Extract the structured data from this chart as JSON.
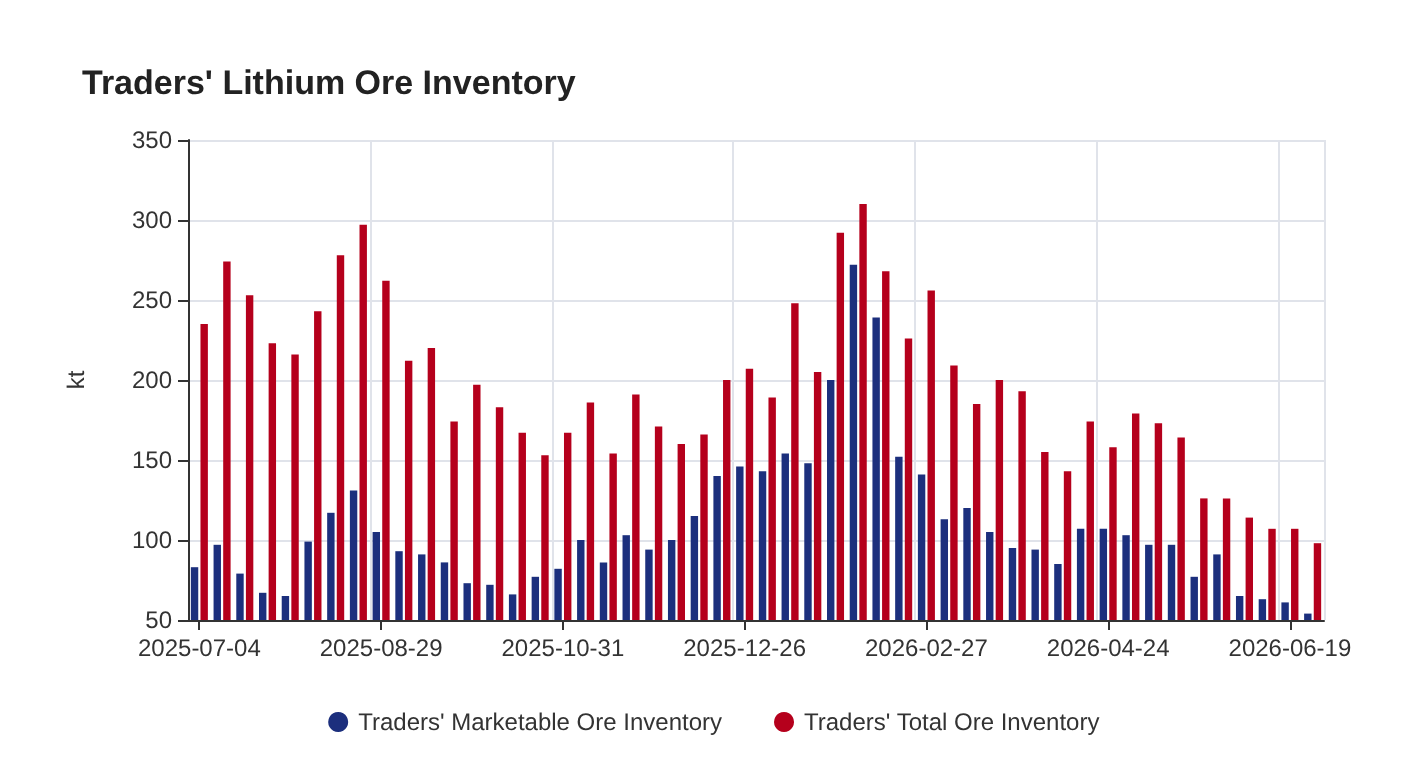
{
  "chart_data": {
    "type": "bar",
    "title": "Traders' Lithium Ore Inventory",
    "ylabel": "kt",
    "categories": [
      "2025-07-04",
      null,
      null,
      null,
      null,
      null,
      null,
      null,
      "2025-08-29",
      null,
      null,
      null,
      null,
      null,
      null,
      null,
      "2025-10-31",
      null,
      null,
      null,
      null,
      null,
      null,
      null,
      "2025-12-26",
      null,
      null,
      null,
      null,
      null,
      null,
      null,
      "2026-02-27",
      null,
      null,
      null,
      null,
      null,
      null,
      null,
      "2026-04-24",
      null,
      null,
      null,
      null,
      null,
      null,
      null,
      "2026-06-19",
      null
    ],
    "series": [
      {
        "name": "Traders' Marketable Ore Inventory",
        "color": "#1c2f7d",
        "values": [
          83,
          97,
          79,
          67,
          65,
          99,
          117,
          131,
          105,
          93,
          91,
          86,
          73,
          72,
          66,
          77,
          82,
          100,
          86,
          103,
          94,
          100,
          115,
          140,
          146,
          143,
          154,
          148,
          200,
          272,
          239,
          152,
          141,
          113,
          120,
          105,
          95,
          94,
          85,
          107,
          107,
          103,
          97,
          97,
          77,
          91,
          65,
          63,
          61,
          54
        ]
      },
      {
        "name": "Traders' Total Ore Inventory",
        "color": "#b5001c",
        "values": [
          235,
          274,
          253,
          223,
          216,
          243,
          278,
          297,
          262,
          212,
          220,
          174,
          197,
          183,
          167,
          153,
          167,
          186,
          154,
          191,
          171,
          160,
          166,
          200,
          207,
          189,
          248,
          205,
          292,
          310,
          268,
          226,
          256,
          209,
          185,
          200,
          193,
          155,
          143,
          174,
          158,
          179,
          173,
          164,
          126,
          126,
          114,
          107,
          107,
          98
        ]
      }
    ],
    "ylim": [
      50,
      350
    ],
    "yticks": [
      50,
      100,
      150,
      200,
      250,
      300,
      350
    ],
    "grid": true,
    "legend": "bottom"
  }
}
